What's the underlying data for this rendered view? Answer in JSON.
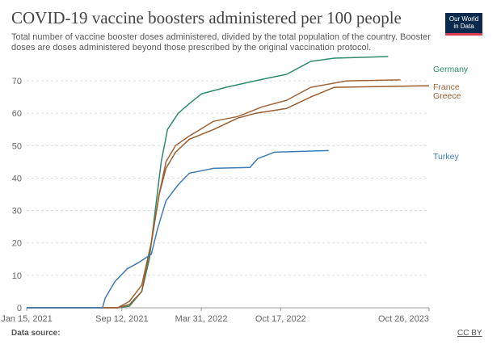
{
  "header": {
    "title": "COVID-19 vaccine boosters administered per 100 people",
    "subtitle": "Total number of vaccine booster doses administered, divided by the total population of the country. Booster doses are doses administered beyond those prescribed by the original vaccination protocol.",
    "logo_line1": "Our World",
    "logo_line2": "in Data"
  },
  "footer": {
    "source_label": "Data source:",
    "license": "CC BY"
  },
  "colors": {
    "germany": "#2e8b6a",
    "france": "#a0643a",
    "greece": "#9b5d2e",
    "turkey": "#3f7bb8",
    "logo_bg": "#0a2a4d",
    "logo_accent": "#d73c50"
  },
  "chart_data": {
    "type": "line",
    "title": "COVID-19 vaccine boosters administered per 100 people",
    "ylim": [
      0,
      75
    ],
    "y_ticks": [
      0,
      10,
      20,
      30,
      40,
      50,
      60,
      70
    ],
    "x_ticks": [
      "2021-01-15",
      "2021-09-12",
      "2022-03-31",
      "2022-10-17",
      "2023-10-26"
    ],
    "x_tick_labels": [
      "Jan 15, 2021",
      "Sep 12, 2021",
      "Mar 31, 2022",
      "Oct 17, 2022",
      "Oct 26, 2023"
    ],
    "x_range": [
      "2021-01-15",
      "2023-10-26"
    ],
    "grid": "horizontal dashed",
    "legend": "right, labels at line ends",
    "series": [
      {
        "name": "Germany",
        "color": "#2e8b6a",
        "points": [
          [
            "2021-01-15",
            0
          ],
          [
            "2021-09-01",
            0
          ],
          [
            "2021-10-01",
            0.5
          ],
          [
            "2021-11-01",
            5
          ],
          [
            "2021-11-20",
            15
          ],
          [
            "2021-12-05",
            30
          ],
          [
            "2021-12-20",
            45
          ],
          [
            "2022-01-05",
            55
          ],
          [
            "2022-02-01",
            60
          ],
          [
            "2022-03-01",
            63
          ],
          [
            "2022-04-01",
            66
          ],
          [
            "2022-06-01",
            68
          ],
          [
            "2022-09-01",
            70.5
          ],
          [
            "2022-11-01",
            72
          ],
          [
            "2023-01-01",
            76
          ],
          [
            "2023-03-01",
            77
          ],
          [
            "2023-07-15",
            77.5
          ]
        ]
      },
      {
        "name": "France",
        "color": "#a0643a",
        "points": [
          [
            "2021-01-15",
            0
          ],
          [
            "2021-09-01",
            0
          ],
          [
            "2021-10-01",
            2
          ],
          [
            "2021-11-01",
            7
          ],
          [
            "2021-11-25",
            20
          ],
          [
            "2021-12-15",
            35
          ],
          [
            "2022-01-01",
            45
          ],
          [
            "2022-01-25",
            50
          ],
          [
            "2022-03-01",
            53
          ],
          [
            "2022-05-01",
            57.5
          ],
          [
            "2022-07-01",
            59
          ],
          [
            "2022-09-01",
            62
          ],
          [
            "2022-11-01",
            64
          ],
          [
            "2023-01-01",
            68
          ],
          [
            "2023-04-01",
            70
          ],
          [
            "2023-08-15",
            70.3
          ]
        ]
      },
      {
        "name": "Greece",
        "color": "#9b5d2e",
        "points": [
          [
            "2021-01-15",
            0
          ],
          [
            "2021-09-01",
            0
          ],
          [
            "2021-10-01",
            1
          ],
          [
            "2021-11-01",
            5
          ],
          [
            "2021-11-25",
            20
          ],
          [
            "2021-12-15",
            35
          ],
          [
            "2022-01-01",
            43
          ],
          [
            "2022-01-25",
            48
          ],
          [
            "2022-03-01",
            52
          ],
          [
            "2022-05-01",
            55
          ],
          [
            "2022-07-01",
            58.5
          ],
          [
            "2022-08-15",
            60
          ],
          [
            "2022-11-01",
            61.5
          ],
          [
            "2023-01-01",
            65
          ],
          [
            "2023-03-01",
            68
          ],
          [
            "2023-10-26",
            68.5
          ]
        ]
      },
      {
        "name": "Turkey",
        "color": "#3f7bb8",
        "points": [
          [
            "2021-01-15",
            0
          ],
          [
            "2021-07-25",
            0
          ],
          [
            "2021-08-01",
            3
          ],
          [
            "2021-08-25",
            8
          ],
          [
            "2021-09-25",
            12
          ],
          [
            "2021-10-25",
            14
          ],
          [
            "2021-11-25",
            16.5
          ],
          [
            "2021-12-10",
            24
          ],
          [
            "2022-01-01",
            33
          ],
          [
            "2022-02-01",
            38
          ],
          [
            "2022-03-01",
            41.5
          ],
          [
            "2022-05-01",
            43
          ],
          [
            "2022-08-01",
            43.3
          ],
          [
            "2022-08-20",
            46
          ],
          [
            "2022-10-01",
            48
          ],
          [
            "2023-02-15",
            48.5
          ]
        ]
      }
    ]
  }
}
